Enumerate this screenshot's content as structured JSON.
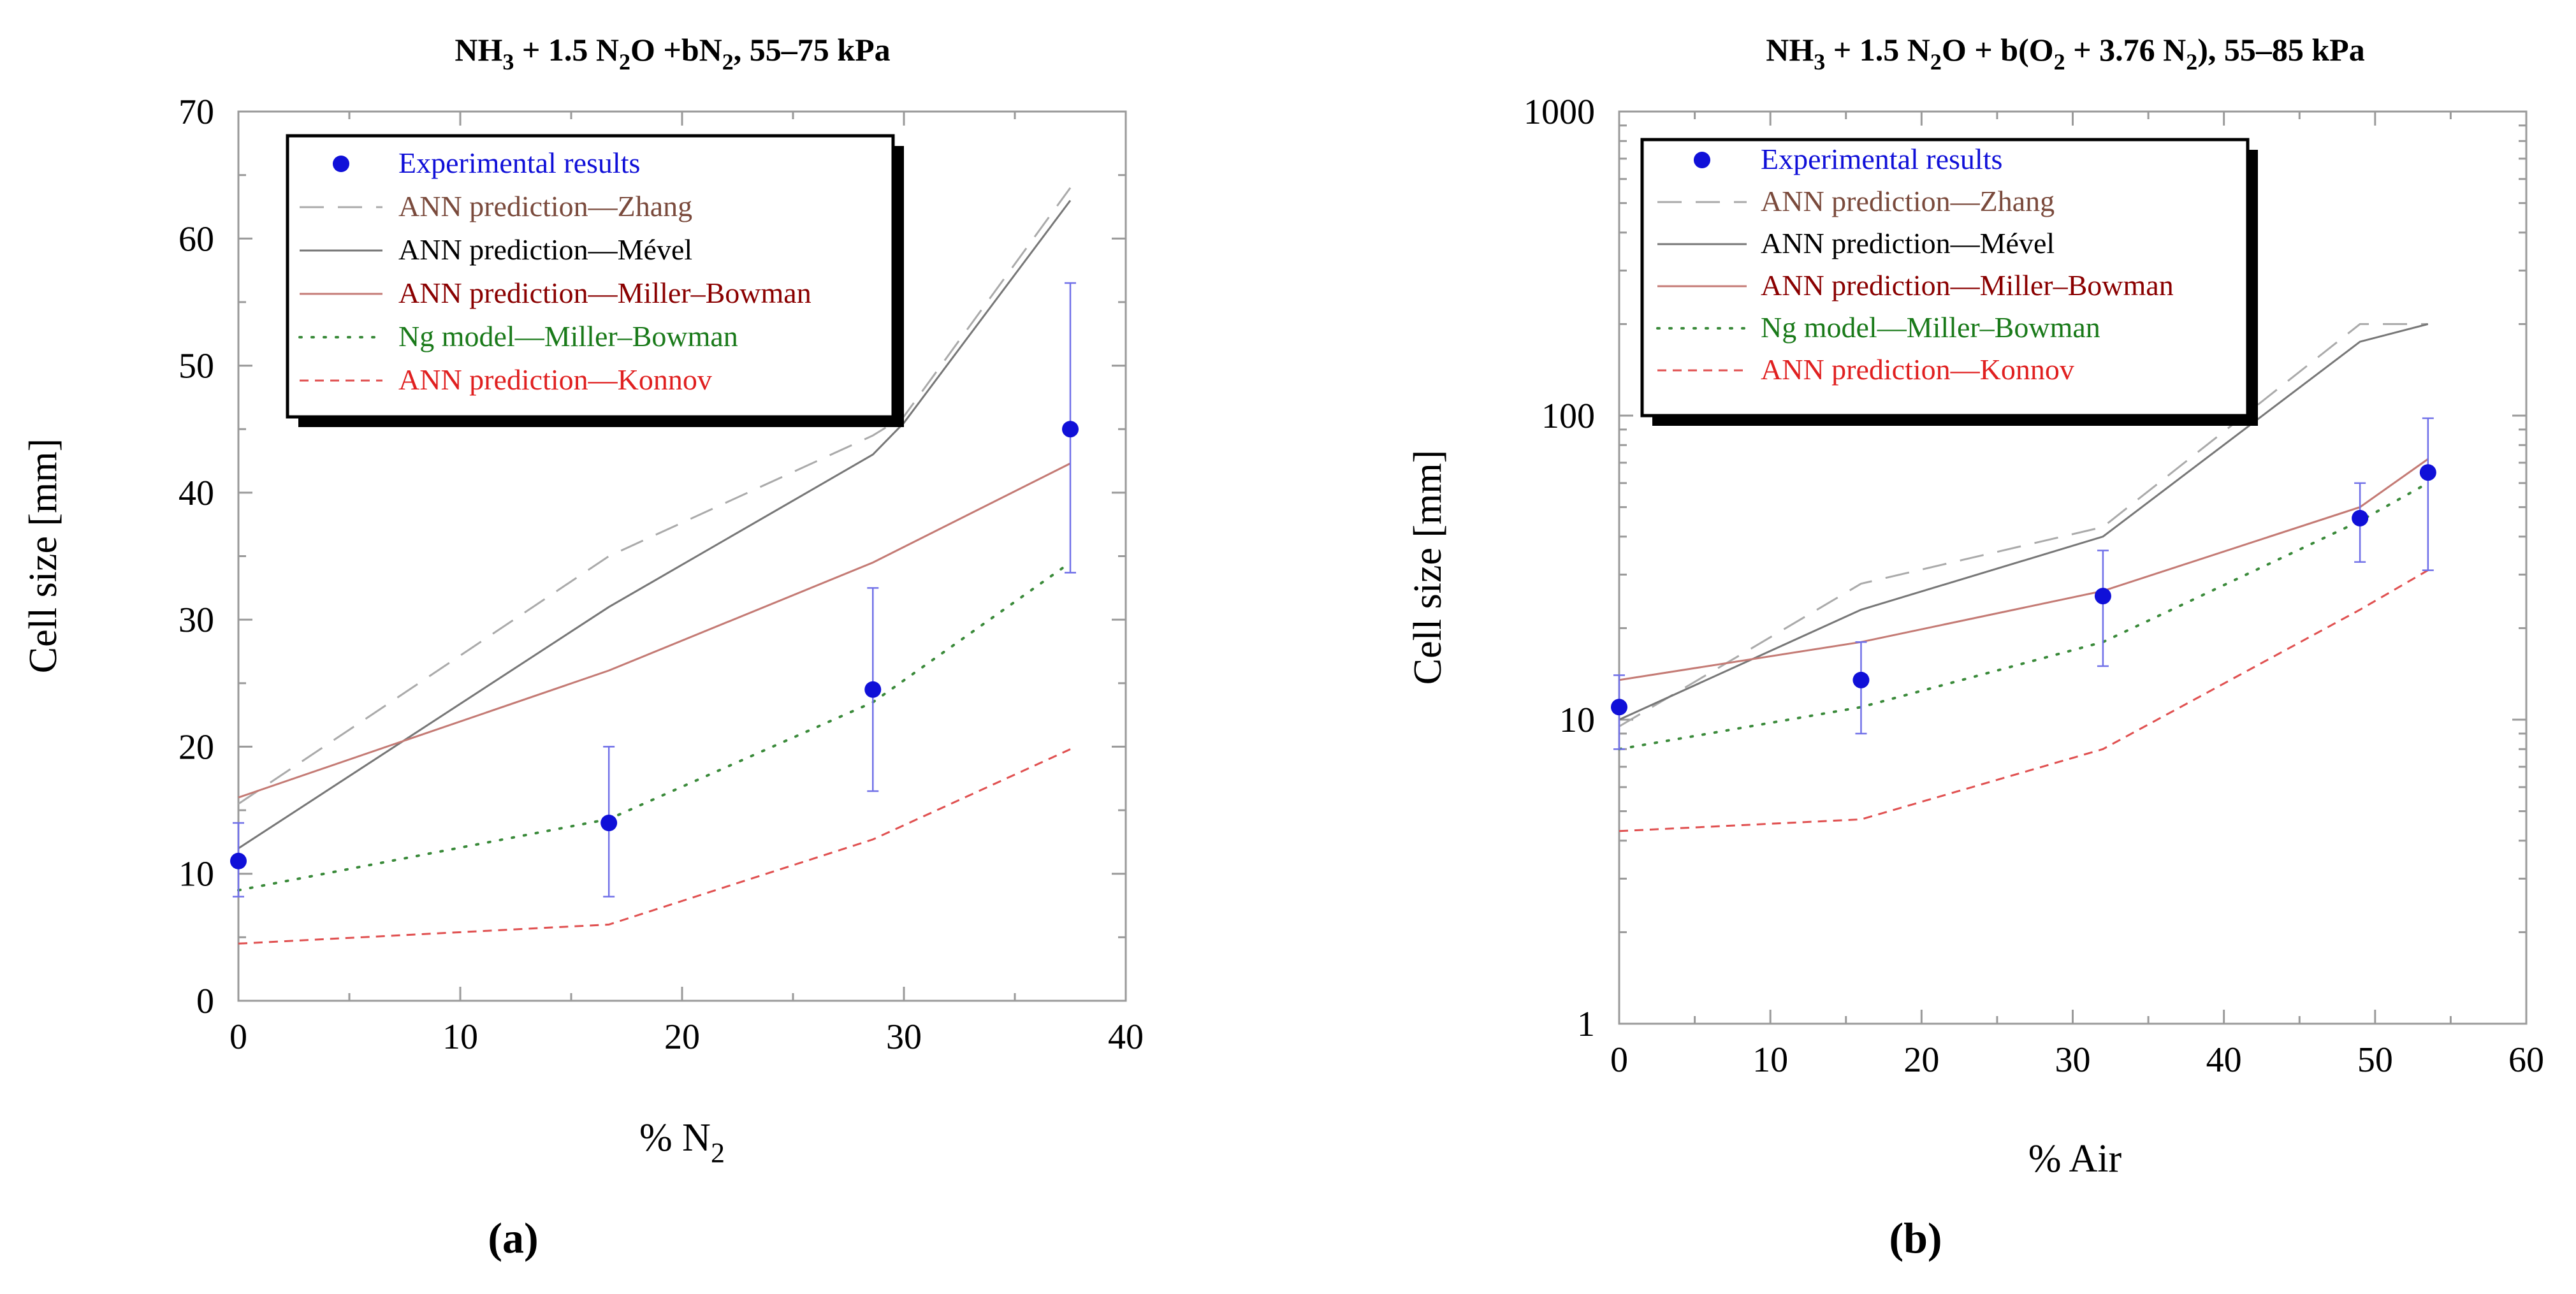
{
  "chart_data": [
    {
      "panel_label": "(a)",
      "title": "NH3 + 1.5 N2O +bN2, 55–75 kPa",
      "title_parts": {
        "p1": "NH",
        "s1": "3",
        "p2": " + 1.5 N",
        "s2": "2",
        "p3": "O +bN",
        "s3": "2",
        "p4": ", 55–75 kPa"
      },
      "type": "line",
      "xlabel": "% N2",
      "xlabel_parts": {
        "main": "% N",
        "sub": "2"
      },
      "ylabel": "Cell size [mm]",
      "yscale": "linear",
      "xlim": [
        0,
        40
      ],
      "ylim": [
        0,
        70
      ],
      "xticks": [
        0,
        10,
        20,
        30,
        40
      ],
      "yticks": [
        0,
        10,
        20,
        30,
        40,
        50,
        60,
        70
      ],
      "grid": false,
      "legend_position": "top-left",
      "series": [
        {
          "name": "Experimental results",
          "kind": "points",
          "color": "#1010d8",
          "x": [
            0,
            16.7,
            28.6,
            37.5
          ],
          "y": [
            11,
            14,
            24.5,
            45
          ],
          "err_low": [
            8.2,
            8.2,
            16.5,
            33.7
          ],
          "err_high": [
            14,
            20,
            32.5,
            56.5
          ]
        },
        {
          "name": "ANN prediction—Zhang",
          "kind": "line",
          "style": "longdash",
          "color": "#aaaaaa",
          "label_color": "#7a4a3c",
          "x": [
            0,
            16.7,
            28.6,
            30,
            37.5
          ],
          "y": [
            15.5,
            35,
            44.5,
            46,
            64
          ]
        },
        {
          "name": "ANN prediction—Mével",
          "kind": "line",
          "style": "solid",
          "color": "#777777",
          "label_color": "#000000",
          "x": [
            0,
            16.7,
            28.6,
            30,
            37.5
          ],
          "y": [
            12,
            31,
            43,
            45.5,
            63
          ]
        },
        {
          "name": "ANN prediction—Miller–Bowman",
          "kind": "line",
          "style": "solid",
          "color": "#c47a74",
          "label_color": "#8a0000",
          "x": [
            0,
            16.7,
            28.6,
            37.5
          ],
          "y": [
            16,
            26,
            34.5,
            42.3
          ]
        },
        {
          "name": "Ng model—Miller–Bowman",
          "kind": "line",
          "style": "dotted",
          "color": "#3a8a3a",
          "label_color": "#1a7a1a",
          "x": [
            0,
            16.7,
            28.6,
            37.5
          ],
          "y": [
            8.7,
            14.3,
            23.5,
            34.5
          ]
        },
        {
          "name": "ANN prediction—Konnov",
          "kind": "line",
          "style": "shortdash",
          "color": "#e05050",
          "label_color": "#e02020",
          "x": [
            0,
            16.7,
            28.6,
            37.5
          ],
          "y": [
            4.5,
            6,
            12.7,
            19.8
          ]
        }
      ]
    },
    {
      "panel_label": "(b)",
      "title": "NH3 + 1.5 N2O + b(O2 + 3.76 N2), 55–85 kPa",
      "title_parts": {
        "p1": "NH",
        "s1": "3",
        "p2": " + 1.5 N",
        "s2": "2",
        "p3": "O + b(O",
        "s3": "2",
        "p4": " + 3.76 N",
        "s4": "2",
        "p5": "), 55–85 kPa"
      },
      "type": "line",
      "xlabel": "% Air",
      "ylabel": "Cell size [mm]",
      "yscale": "log",
      "xlim": [
        0,
        60
      ],
      "ylim": [
        1,
        1000
      ],
      "xticks": [
        0,
        10,
        20,
        30,
        40,
        50,
        60
      ],
      "yticks": [
        1,
        10,
        100,
        1000
      ],
      "grid": false,
      "legend_position": "top-left",
      "series": [
        {
          "name": "Experimental results",
          "kind": "points",
          "color": "#1010d8",
          "x": [
            0,
            16,
            32,
            49,
            53.5
          ],
          "y": [
            11,
            13.5,
            25.5,
            46,
            65
          ],
          "err_low": [
            8,
            9,
            15,
            33,
            31
          ],
          "err_high": [
            14,
            18,
            36,
            60,
            98
          ]
        },
        {
          "name": "ANN prediction—Zhang",
          "kind": "line",
          "style": "longdash",
          "color": "#aaaaaa",
          "label_color": "#7a4a3c",
          "x": [
            0,
            16,
            32,
            49,
            53.5
          ],
          "y": [
            9.5,
            28,
            43,
            200,
            200
          ]
        },
        {
          "name": "ANN prediction—Mével",
          "kind": "line",
          "style": "solid",
          "color": "#777777",
          "label_color": "#000000",
          "x": [
            0,
            16,
            32,
            49,
            53.5
          ],
          "y": [
            10,
            23,
            40,
            175,
            200
          ]
        },
        {
          "name": "ANN prediction—Miller–Bowman",
          "kind": "line",
          "style": "solid",
          "color": "#c47a74",
          "label_color": "#8a0000",
          "x": [
            0,
            16,
            32,
            49,
            53.5
          ],
          "y": [
            13.5,
            18,
            26.5,
            50,
            72
          ]
        },
        {
          "name": "Ng model—Miller–Bowman",
          "kind": "line",
          "style": "dotted",
          "color": "#3a8a3a",
          "label_color": "#1a7a1a",
          "x": [
            0,
            16,
            32,
            49,
            53.5
          ],
          "y": [
            8,
            11,
            18,
            45,
            60
          ]
        },
        {
          "name": "ANN prediction—Konnov",
          "kind": "line",
          "style": "shortdash",
          "color": "#e05050",
          "label_color": "#e02020",
          "x": [
            0,
            16,
            32,
            49,
            53.5
          ],
          "y": [
            4.3,
            4.7,
            8,
            23,
            31
          ]
        }
      ]
    }
  ]
}
